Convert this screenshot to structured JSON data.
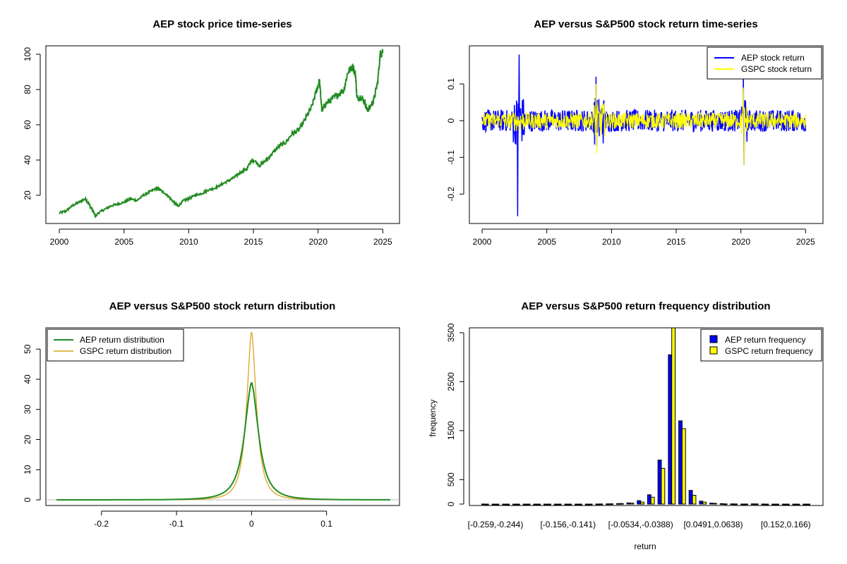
{
  "chart_data": [
    {
      "type": "line",
      "title": "AEP stock price time-series",
      "xlabel": "",
      "ylabel": "",
      "xlim": [
        2000,
        2025.2
      ],
      "ylim": [
        6,
        104
      ],
      "x_ticks": [
        2000,
        2005,
        2010,
        2015,
        2020,
        2025
      ],
      "y_ticks": [
        20,
        40,
        60,
        80,
        100
      ],
      "grid": false,
      "colors": {
        "price": "#228b22"
      },
      "series": [
        {
          "x": [
            2000.0,
            2000.5,
            2001.0,
            2001.5,
            2002.0,
            2002.3,
            2002.6,
            2002.8,
            2003.0,
            2003.5,
            2004.0,
            2004.5,
            2005.0,
            2005.5,
            2006.0,
            2006.5,
            2007.0,
            2007.5,
            2007.8,
            2008.2,
            2008.6,
            2009.0,
            2009.2,
            2009.6,
            2010.0,
            2010.5,
            2011.0,
            2011.5,
            2012.0,
            2012.5,
            2013.0,
            2013.5,
            2014.0,
            2014.5,
            2014.8,
            2015.0,
            2015.5,
            2016.0,
            2016.5,
            2017.0,
            2017.5,
            2018.0,
            2018.5,
            2019.0,
            2019.5,
            2019.9,
            2020.1,
            2020.3,
            2020.6,
            2021.0,
            2021.5,
            2022.0,
            2022.3,
            2022.7,
            2022.9,
            2023.0,
            2023.3,
            2023.6,
            2023.8,
            2024.0,
            2024.3,
            2024.6,
            2024.8,
            2025.0
          ],
          "values": [
            10,
            11,
            14,
            16,
            18,
            15,
            11,
            8,
            10,
            12,
            14,
            15,
            16,
            18,
            17,
            20,
            22,
            24,
            23,
            21,
            18,
            15,
            14,
            17,
            18,
            20,
            21,
            23,
            24,
            26,
            28,
            30,
            33,
            35,
            39,
            40,
            37,
            40,
            44,
            48,
            50,
            55,
            57,
            63,
            70,
            80,
            85,
            68,
            72,
            74,
            77,
            80,
            90,
            93,
            88,
            75,
            76,
            73,
            68,
            70,
            74,
            84,
            100,
            102
          ]
        }
      ]
    },
    {
      "type": "line",
      "title": "AEP versus S&P500 stock return time-series",
      "xlabel": "",
      "ylabel": "",
      "xlim": [
        2000,
        2025.2
      ],
      "ylim": [
        -0.28,
        0.2
      ],
      "x_ticks": [
        2000,
        2005,
        2010,
        2015,
        2020,
        2025
      ],
      "y_ticks": [
        -0.2,
        -0.1,
        0.0,
        0.1
      ],
      "legend": "top-right",
      "grid": false,
      "series": [
        {
          "name": "AEP stock return",
          "color": "#0000ff",
          "base_amplitude": 0.03,
          "spikes": [
            [
              2002.75,
              -0.26
            ],
            [
              2002.85,
              0.18
            ],
            [
              2008.8,
              0.12
            ],
            [
              2008.85,
              -0.07
            ],
            [
              2020.2,
              0.12
            ],
            [
              2020.25,
              -0.12
            ]
          ]
        },
        {
          "name": "GSPC stock return",
          "color": "#ffff00",
          "base_amplitude": 0.022,
          "spikes": [
            [
              2008.8,
              0.1
            ],
            [
              2008.85,
              -0.09
            ],
            [
              2020.2,
              0.09
            ],
            [
              2020.25,
              -0.12
            ]
          ]
        }
      ]
    },
    {
      "type": "line",
      "title": "AEP versus S&P500 stock return distribution",
      "xlabel": "",
      "ylabel": "",
      "xlim": [
        -0.26,
        0.185
      ],
      "ylim": [
        0,
        58
      ],
      "x_ticks": [
        -0.2,
        -0.1,
        0.0,
        0.1
      ],
      "y_ticks": [
        0,
        10,
        20,
        30,
        40,
        50
      ],
      "legend": "top-left",
      "grid": false,
      "series": [
        {
          "name": "AEP return distribution",
          "color": "#228b22",
          "sigma": 0.0102,
          "peak": 39
        },
        {
          "name": "GSPC return distribution",
          "color": "#daa520",
          "sigma": 0.0071,
          "peak": 56
        }
      ]
    },
    {
      "type": "bar",
      "title": "AEP versus S&P500 return frequency distribution",
      "xlabel": "return",
      "ylabel": "frequency",
      "ylim": [
        0,
        3600
      ],
      "y_ticks": [
        0,
        500,
        1500,
        2500,
        3500
      ],
      "x_tick_labels": [
        "[-0.259,-0.244)",
        "[-0.156,-0.141)",
        "[-0.0534,-0.0388)",
        "[0.0491,0.0638)",
        "[0.152,0.166)"
      ],
      "legend": "top-right",
      "grid": false,
      "series": [
        {
          "name": "AEP return frequency",
          "color": "#0000ff",
          "values": [
            1,
            0,
            0,
            0,
            0,
            0,
            0,
            0,
            0,
            0,
            0,
            2,
            5,
            10,
            25,
            70,
            190,
            900,
            3050,
            1700,
            280,
            60,
            20,
            8,
            5,
            2,
            5,
            1,
            0,
            0,
            0,
            0
          ]
        },
        {
          "name": "GSPC return frequency",
          "color": "#ffff00",
          "values": [
            0,
            0,
            0,
            0,
            0,
            0,
            0,
            0,
            0,
            0,
            0,
            3,
            6,
            12,
            20,
            40,
            140,
            730,
            3600,
            1540,
            180,
            40,
            15,
            5,
            3,
            2,
            3,
            0,
            0,
            0,
            0,
            0
          ]
        }
      ]
    }
  ]
}
